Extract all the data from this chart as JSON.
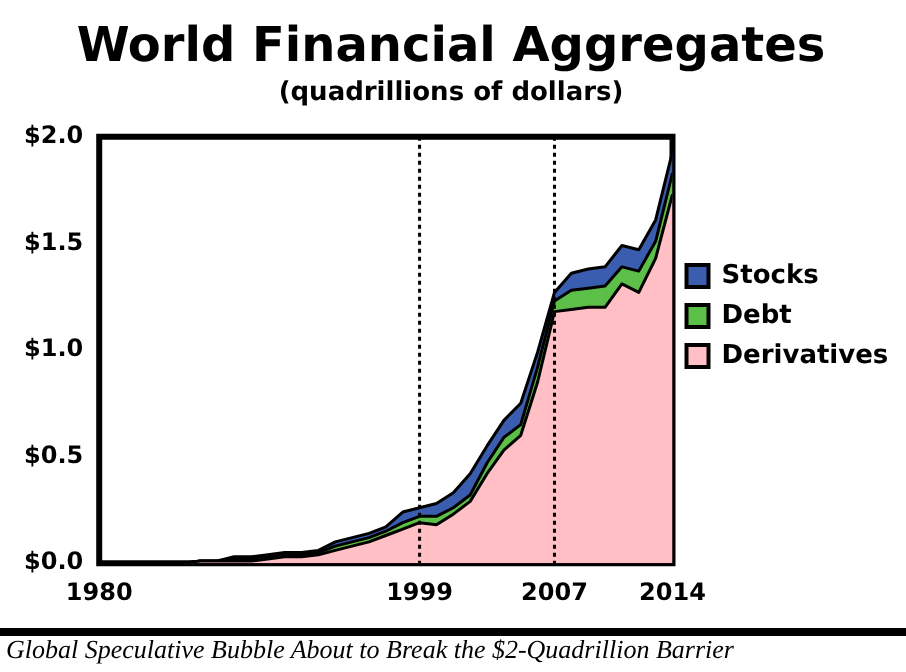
{
  "chart_data": {
    "type": "area",
    "title": "World Financial Aggregates",
    "subtitle": "(quadrillions of dollars)",
    "stacked": true,
    "x": [
      1980,
      1981,
      1982,
      1983,
      1984,
      1985,
      1986,
      1987,
      1988,
      1989,
      1990,
      1991,
      1992,
      1993,
      1994,
      1995,
      1996,
      1997,
      1998,
      1999,
      2000,
      2001,
      2002,
      2003,
      2004,
      2005,
      2006,
      2007,
      2008,
      2009,
      2010,
      2011,
      2012,
      2013,
      2014
    ],
    "series": [
      {
        "name": "Derivatives",
        "color": "#ffbfc4",
        "values": [
          0,
          0,
          0,
          0,
          0,
          0,
          0.01,
          0.01,
          0.01,
          0.01,
          0.02,
          0.03,
          0.03,
          0.04,
          0.06,
          0.08,
          0.1,
          0.13,
          0.16,
          0.19,
          0.18,
          0.23,
          0.29,
          0.42,
          0.53,
          0.6,
          0.85,
          1.18,
          1.19,
          1.2,
          1.2,
          1.31,
          1.27,
          1.43,
          1.73
        ]
      },
      {
        "name": "Debt",
        "color": "#5cbf48",
        "values": [
          0,
          0,
          0,
          0,
          0,
          0,
          0,
          0,
          0.01,
          0.01,
          0.01,
          0.01,
          0.01,
          0.01,
          0.02,
          0.02,
          0.02,
          0.02,
          0.03,
          0.03,
          0.04,
          0.03,
          0.03,
          0.05,
          0.06,
          0.05,
          0.07,
          0.05,
          0.09,
          0.09,
          0.1,
          0.08,
          0.1,
          0.08,
          0.1
        ]
      },
      {
        "name": "Stocks",
        "color": "#3a5db0",
        "values": [
          0,
          0,
          0,
          0,
          0,
          0,
          0,
          0,
          0.01,
          0.01,
          0.01,
          0.01,
          0.01,
          0.01,
          0.02,
          0.02,
          0.02,
          0.02,
          0.05,
          0.04,
          0.06,
          0.07,
          0.1,
          0.08,
          0.08,
          0.1,
          0.07,
          0.04,
          0.08,
          0.09,
          0.09,
          0.1,
          0.1,
          0.1,
          0.1
        ]
      }
    ],
    "xlim": [
      1980,
      2014
    ],
    "xticks": [
      1980,
      1999,
      2007,
      2014
    ],
    "ylim": [
      0,
      2
    ],
    "yticks": [
      {
        "value": 0,
        "label": "$0.0"
      },
      {
        "value": 0.5,
        "label": "$0.5"
      },
      {
        "value": 1,
        "label": "$1.0"
      },
      {
        "value": 1.5,
        "label": "$1.5"
      },
      {
        "value": 2,
        "label": "$2.0"
      }
    ],
    "ref_lines": [
      {
        "axis": "x",
        "value": 1999,
        "line_style": "dotted"
      },
      {
        "axis": "x",
        "value": 2007,
        "line_style": "dotted"
      }
    ],
    "legend": "right",
    "annotations": [
      "Global Speculative Bubble About to Break the $2-Quadrillion Barrier"
    ]
  }
}
